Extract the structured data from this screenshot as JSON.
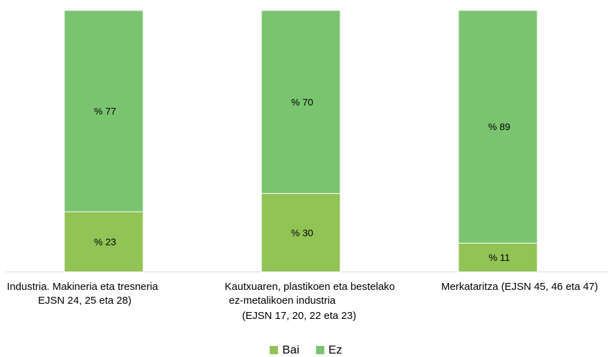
{
  "chart_data": {
    "type": "bar",
    "stacked": true,
    "percent": true,
    "categories": [
      [
        "Industria. Makineria eta tresneria",
        "EJSN 24, 25 eta 28)"
      ],
      [
        "Kautxuaren, plastikoen eta bestelako",
        "ez-metalikoen industria",
        "(EJSN 17, 20, 22 eta 23)"
      ],
      [
        "Merkataritza (EJSN 45, 46 eta 47)"
      ]
    ],
    "series": [
      {
        "name": "Bai",
        "color": "#92c355",
        "values": [
          23,
          30,
          11
        ],
        "labels": [
          "% 23",
          "% 30",
          "% 11"
        ]
      },
      {
        "name": "Ez",
        "color": "#7ac470",
        "values": [
          77,
          70,
          89
        ],
        "labels": [
          "% 77",
          "% 70",
          "% 89"
        ]
      }
    ],
    "ylim": [
      0,
      100
    ],
    "grid": false,
    "legend": "bottom"
  }
}
